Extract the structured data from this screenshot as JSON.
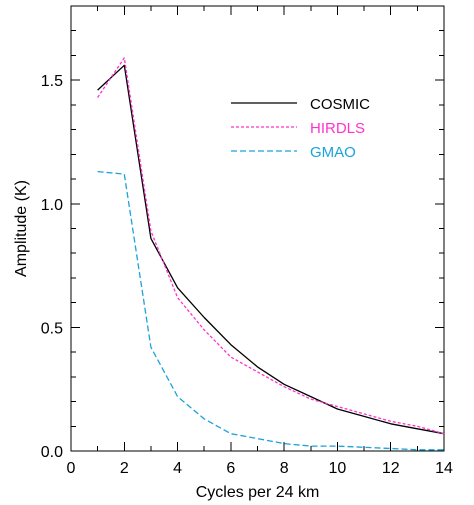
{
  "chart_data": {
    "type": "line",
    "title": "",
    "xlabel": "Cycles per 24 km",
    "ylabel": "Amplitude (K)",
    "xlim": [
      0,
      14
    ],
    "ylim": [
      0,
      1.8
    ],
    "x_ticks": [
      0,
      2,
      4,
      6,
      8,
      10,
      12,
      14
    ],
    "x_tick_labels": [
      "0",
      "2",
      "4",
      "6",
      "8",
      "10",
      "12",
      "14"
    ],
    "y_ticks": [
      0.0,
      0.5,
      1.0,
      1.5
    ],
    "y_tick_labels": [
      "0.0",
      "0.5",
      "1.0",
      "1.5"
    ],
    "grid": false,
    "legend_position": "upper-right",
    "series": [
      {
        "name": "COSMIC",
        "color": "#000000",
        "dash": "solid",
        "x": [
          1,
          2,
          3,
          4,
          5,
          6,
          7,
          8,
          9,
          10,
          11,
          12,
          13,
          14
        ],
        "y": [
          1.46,
          1.56,
          0.86,
          0.66,
          0.54,
          0.43,
          0.34,
          0.27,
          0.22,
          0.17,
          0.14,
          0.11,
          0.09,
          0.07
        ]
      },
      {
        "name": "HIRDLS",
        "color": "#ff33cc",
        "dash": "dashed",
        "x": [
          1,
          2,
          3,
          4,
          5,
          6,
          7,
          8,
          9,
          10,
          11,
          12,
          13,
          14
        ],
        "y": [
          1.43,
          1.59,
          0.89,
          0.62,
          0.49,
          0.38,
          0.32,
          0.26,
          0.21,
          0.18,
          0.15,
          0.12,
          0.1,
          0.07
        ]
      },
      {
        "name": "GMAO",
        "color": "#1aa3d9",
        "dash": "dashed",
        "x": [
          1,
          2,
          3,
          4,
          5,
          6,
          7,
          8,
          9,
          10,
          11,
          12,
          13,
          14
        ],
        "y": [
          1.13,
          1.12,
          0.42,
          0.22,
          0.13,
          0.07,
          0.05,
          0.03,
          0.02,
          0.02,
          0.015,
          0.01,
          0.005,
          0.005
        ]
      }
    ]
  }
}
